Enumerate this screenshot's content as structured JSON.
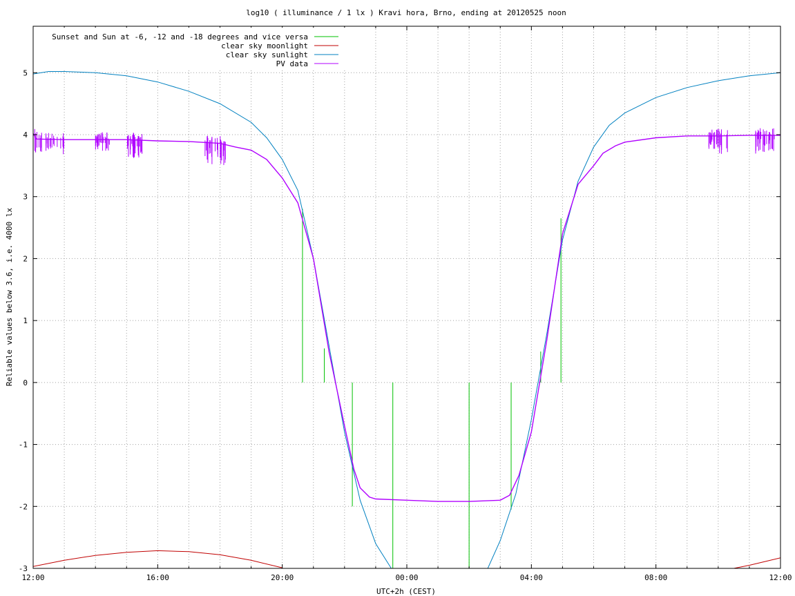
{
  "chart_data": {
    "type": "line",
    "title": "log10 ( illuminance / 1 lx ) Kravi hora, Brno, ending at 20120525 noon",
    "xlabel": "UTC+2h (CEST)",
    "ylabel": "Reliable values below 3.6, i.e. 4000 lx",
    "xlim": [
      12,
      36
    ],
    "ylim": [
      -3,
      5.75
    ],
    "x_ticks": [
      12,
      16,
      20,
      24,
      28,
      32,
      36
    ],
    "x_tick_labels": [
      "12:00",
      "16:00",
      "20:00",
      "00:00",
      "04:00",
      "08:00",
      "12:00"
    ],
    "y_ticks": [
      -3,
      -2,
      -1,
      0,
      1,
      2,
      3,
      4,
      5
    ],
    "y_tick_labels": [
      "-3",
      "-2",
      "-1",
      "0",
      "1",
      "2",
      "3",
      "4",
      "5"
    ],
    "grid": true,
    "legend_position": "top-left",
    "series": [
      {
        "name": "Sunset and Sun at -6, -12 and -18 degrees and vice versa",
        "color": "#00c000",
        "style": "vertical-impulses",
        "impulses": [
          {
            "x": 20.65,
            "y_from": 0,
            "y_to": 2.8
          },
          {
            "x": 21.35,
            "y_from": 0,
            "y_to": 0.55
          },
          {
            "x": 22.25,
            "y_from": 0,
            "y_to": -2.0
          },
          {
            "x": 23.55,
            "y_from": 0,
            "y_to": -3.0
          },
          {
            "x": 26.0,
            "y_from": 0,
            "y_to": -3.0
          },
          {
            "x": 27.35,
            "y_from": 0,
            "y_to": -2.05
          },
          {
            "x": 28.3,
            "y_from": 0,
            "y_to": 0.5
          },
          {
            "x": 28.95,
            "y_from": 0,
            "y_to": 2.65
          }
        ]
      },
      {
        "name": "clear sky moonlight",
        "color": "#c00000",
        "points": [
          [
            12,
            -2.97
          ],
          [
            13,
            -2.87
          ],
          [
            14,
            -2.79
          ],
          [
            15,
            -2.74
          ],
          [
            16,
            -2.715
          ],
          [
            17,
            -2.73
          ],
          [
            18,
            -2.78
          ],
          [
            19,
            -2.87
          ],
          [
            20,
            -2.99
          ],
          [
            34.5,
            -3.0
          ],
          [
            35,
            -2.95
          ],
          [
            35.5,
            -2.89
          ],
          [
            36,
            -2.83
          ]
        ]
      },
      {
        "name": "clear sky sunlight",
        "color": "#0080c0",
        "points": [
          [
            12,
            4.98
          ],
          [
            12.5,
            5.02
          ],
          [
            13,
            5.02
          ],
          [
            14,
            5.0
          ],
          [
            15,
            4.95
          ],
          [
            16,
            4.85
          ],
          [
            17,
            4.7
          ],
          [
            18,
            4.5
          ],
          [
            19,
            4.2
          ],
          [
            19.5,
            3.95
          ],
          [
            20,
            3.6
          ],
          [
            20.5,
            3.1
          ],
          [
            21,
            2.0
          ],
          [
            21.5,
            0.6
          ],
          [
            22,
            -0.8
          ],
          [
            22.5,
            -1.9
          ],
          [
            23,
            -2.6
          ],
          [
            23.5,
            -3.0
          ],
          [
            26.6,
            -3.0
          ],
          [
            27,
            -2.55
          ],
          [
            27.5,
            -1.8
          ],
          [
            28,
            -0.6
          ],
          [
            28.5,
            0.8
          ],
          [
            29,
            2.3
          ],
          [
            29.5,
            3.25
          ],
          [
            30,
            3.8
          ],
          [
            30.5,
            4.15
          ],
          [
            31,
            4.35
          ],
          [
            32,
            4.6
          ],
          [
            33,
            4.76
          ],
          [
            34,
            4.87
          ],
          [
            35,
            4.95
          ],
          [
            36,
            5.0
          ]
        ]
      },
      {
        "name": "PV data",
        "color": "#b000ff",
        "points": [
          [
            12,
            4.02
          ],
          [
            12.1,
            3.93
          ],
          [
            13,
            3.92
          ],
          [
            14,
            3.92
          ],
          [
            15,
            3.92
          ],
          [
            16,
            3.9
          ],
          [
            17,
            3.89
          ],
          [
            18,
            3.86
          ],
          [
            18.5,
            3.8
          ],
          [
            19,
            3.75
          ],
          [
            19.5,
            3.6
          ],
          [
            20,
            3.3
          ],
          [
            20.5,
            2.9
          ],
          [
            21,
            2.0
          ],
          [
            21.5,
            0.5
          ],
          [
            22,
            -0.7
          ],
          [
            22.3,
            -1.4
          ],
          [
            22.5,
            -1.7
          ],
          [
            22.8,
            -1.85
          ],
          [
            23,
            -1.88
          ],
          [
            24,
            -1.9
          ],
          [
            25,
            -1.92
          ],
          [
            26,
            -1.92
          ],
          [
            27,
            -1.9
          ],
          [
            27.3,
            -1.82
          ],
          [
            27.6,
            -1.5
          ],
          [
            28,
            -0.8
          ],
          [
            28.5,
            0.7
          ],
          [
            29,
            2.4
          ],
          [
            29.5,
            3.2
          ],
          [
            30,
            3.5
          ],
          [
            30.3,
            3.7
          ],
          [
            30.7,
            3.82
          ],
          [
            31,
            3.88
          ],
          [
            32,
            3.95
          ],
          [
            33,
            3.98
          ],
          [
            34,
            3.98
          ],
          [
            35,
            3.99
          ],
          [
            36,
            3.99
          ]
        ],
        "noise_ranges": [
          [
            12,
            13,
            -0.25
          ],
          [
            14,
            14.5,
            -0.2
          ],
          [
            15,
            15.5,
            -0.3
          ],
          [
            17.5,
            18.2,
            -0.35
          ],
          [
            33.7,
            34.3,
            -0.3
          ],
          [
            35.2,
            35.8,
            -0.3
          ]
        ]
      }
    ]
  }
}
